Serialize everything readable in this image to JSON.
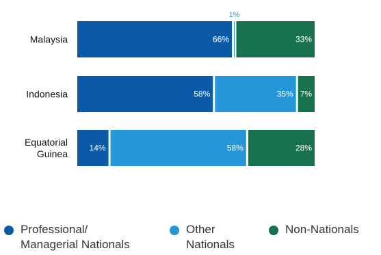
{
  "chart_data": {
    "type": "bar",
    "orientation": "horizontal",
    "stacked": true,
    "categories": [
      "Malaysia",
      "Indonesia",
      "Equatorial Guinea"
    ],
    "category_lines": [
      [
        "Malaysia"
      ],
      [
        "Indonesia"
      ],
      [
        "Equatorial",
        "Guinea"
      ]
    ],
    "series": [
      {
        "name": "Professional/ Managerial Nationals",
        "name_lines": [
          "Professional/",
          "Managerial Nationals"
        ],
        "color": "#0a5aa8",
        "values": [
          66,
          58,
          14
        ]
      },
      {
        "name": "Other Nationals",
        "name_lines": [
          "Other",
          "Nationals"
        ],
        "color": "#2796d8",
        "values": [
          1,
          35,
          58
        ]
      },
      {
        "name": "Non-Nationals",
        "name_lines": [
          "Non-Nationals"
        ],
        "color": "#17704e",
        "values": [
          33,
          7,
          28
        ]
      }
    ],
    "labels": [
      [
        "66%",
        "1%",
        "33%"
      ],
      [
        "58%",
        "35%",
        "7%"
      ],
      [
        "14%",
        "58%",
        "28%"
      ]
    ],
    "outside_label_color": "#2796d8",
    "xlim": [
      0,
      100
    ],
    "grid": false,
    "legend_position": "bottom"
  }
}
